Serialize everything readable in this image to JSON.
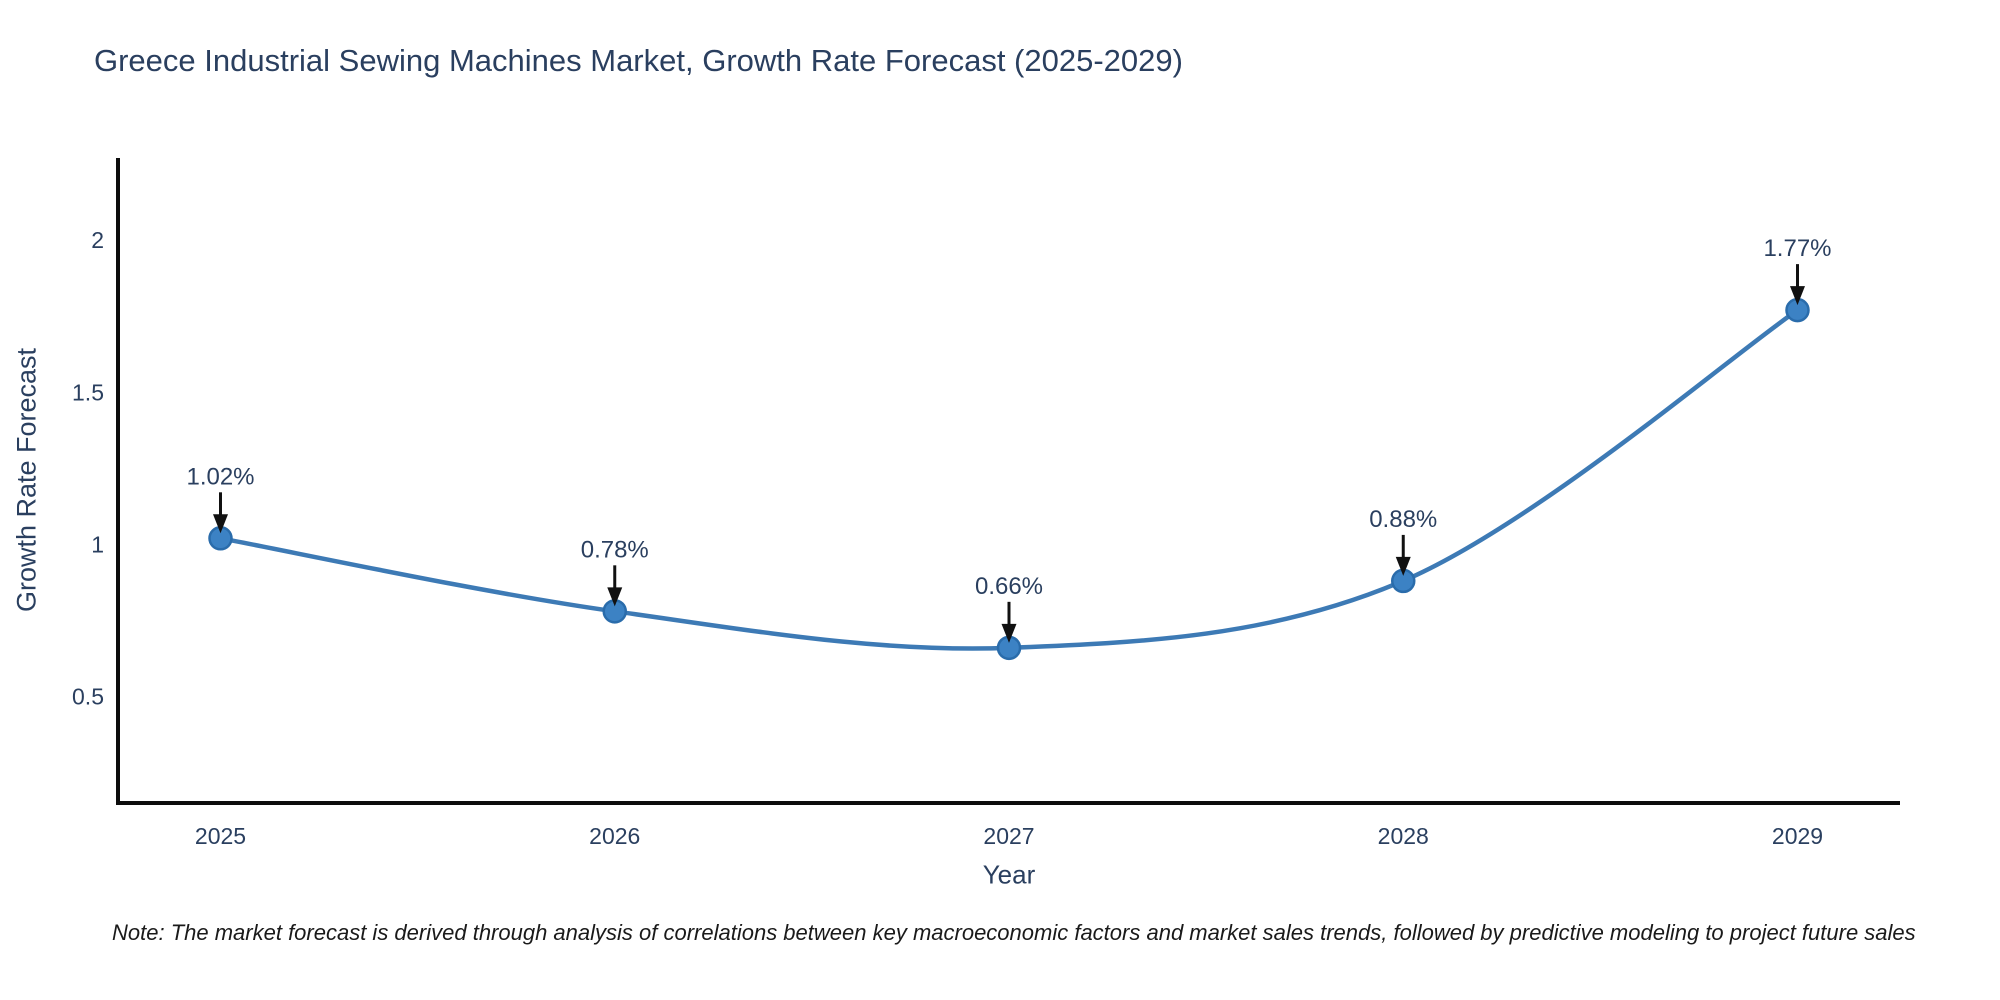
{
  "chart_data": {
    "type": "line",
    "title": "Greece Industrial Sewing Machines Market, Growth Rate Forecast (2025-2029)",
    "xlabel": "Year",
    "ylabel": "Growth Rate Forecast",
    "categories": [
      2025,
      2026,
      2027,
      2028,
      2029
    ],
    "values": [
      1.02,
      0.78,
      0.66,
      0.88,
      1.77
    ],
    "point_labels": [
      "1.02%",
      "0.78%",
      "0.66%",
      "0.88%",
      "1.77%"
    ],
    "xtick_labels": [
      "2025",
      "2026",
      "2027",
      "2028",
      "2029"
    ],
    "yticks": [
      0.5,
      1,
      1.5,
      2
    ],
    "ytick_labels": [
      "0.5",
      "1",
      "1.5",
      "2"
    ],
    "xlim": [
      2024.74,
      2029.26
    ],
    "ylim": [
      0.15,
      2.27
    ],
    "grid": false,
    "legend": false,
    "line_shape": "spline",
    "annotation_style": "black-arrow-down-to-point",
    "colors": {
      "line": "#3d7ab5",
      "marker_fill": "#3c82c4",
      "marker_stroke": "#2a6cab",
      "axis": "#0d0d0d",
      "text": "#2a3f5f",
      "arrow": "#111111",
      "note_text": "#1a1a1a",
      "background": "#ffffff"
    }
  },
  "note": {
    "text": "Note: The market forecast is derived through analysis of correlations between key macroeconomic factors and market sales trends, followed by predictive modeling to project future sales"
  }
}
